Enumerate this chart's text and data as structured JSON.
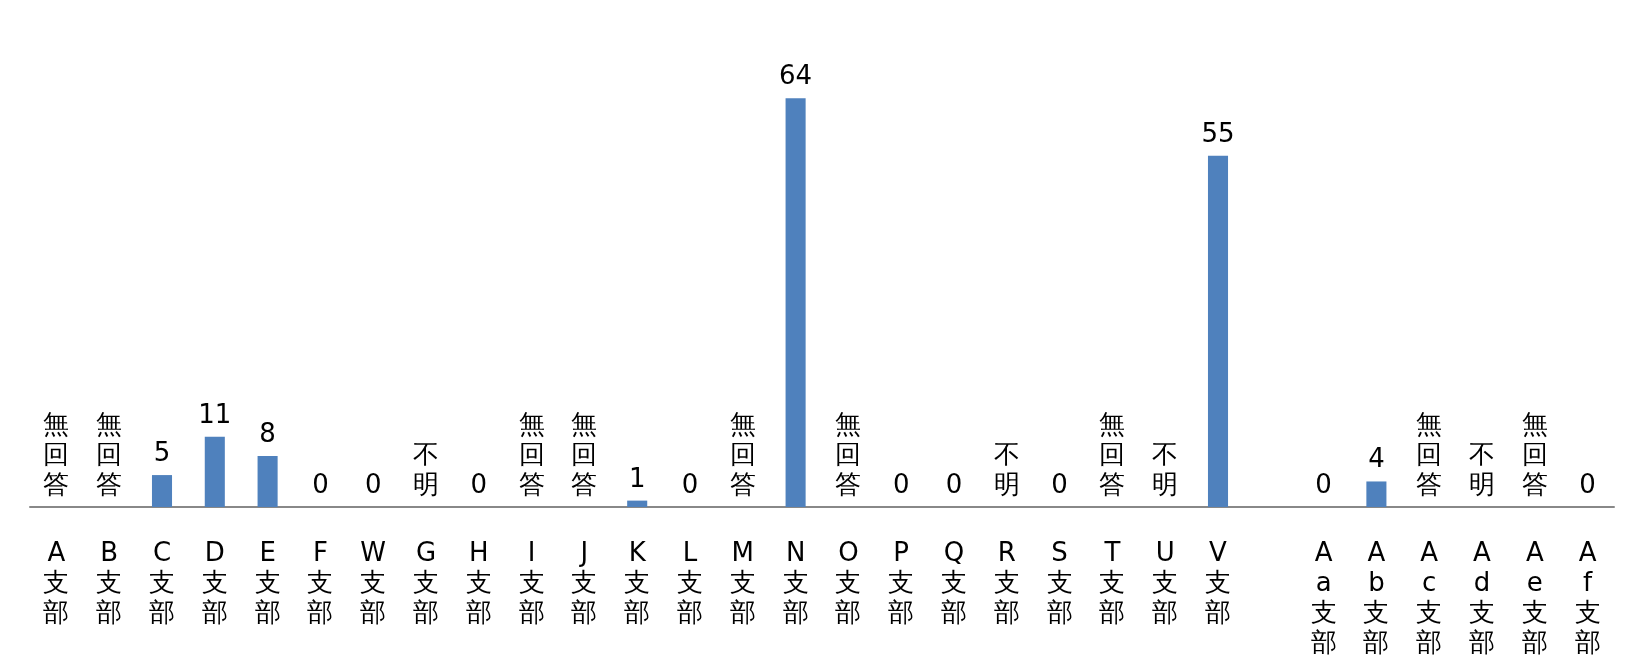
{
  "chart_data": {
    "type": "bar",
    "categories": [
      "A支部",
      "B支部",
      "C支部",
      "D支部",
      "E支部",
      "F支部",
      "W支部",
      "G支部",
      "H支部",
      "I支部",
      "J支部",
      "K支部",
      "L支部",
      "M支部",
      "N支部",
      "O支部",
      "P支部",
      "Q支部",
      "R支部",
      "S支部",
      "T支部",
      "U支部",
      "V支部",
      null,
      "Aa支部",
      "Ab支部",
      "Ac支部",
      "Ad支部",
      "Ae支部",
      "Af支部"
    ],
    "values": [
      null,
      null,
      5,
      11,
      8,
      0,
      0,
      null,
      0,
      null,
      null,
      1,
      0,
      null,
      64,
      null,
      0,
      0,
      null,
      0,
      null,
      null,
      55,
      null,
      0,
      4,
      null,
      null,
      null,
      0
    ],
    "value_labels": [
      "無回答",
      "無回答",
      "5",
      "11",
      "8",
      "0",
      "0",
      "不明",
      "0",
      "無回答",
      "無回答",
      "1",
      "0",
      "無回答",
      "64",
      "無回答",
      "0",
      "0",
      "不明",
      "0",
      "無回答",
      "不明",
      "55",
      null,
      "0",
      "4",
      "無回答",
      "不明",
      "無回答",
      "0"
    ],
    "color": "#4f81bd",
    "grid": false
  }
}
